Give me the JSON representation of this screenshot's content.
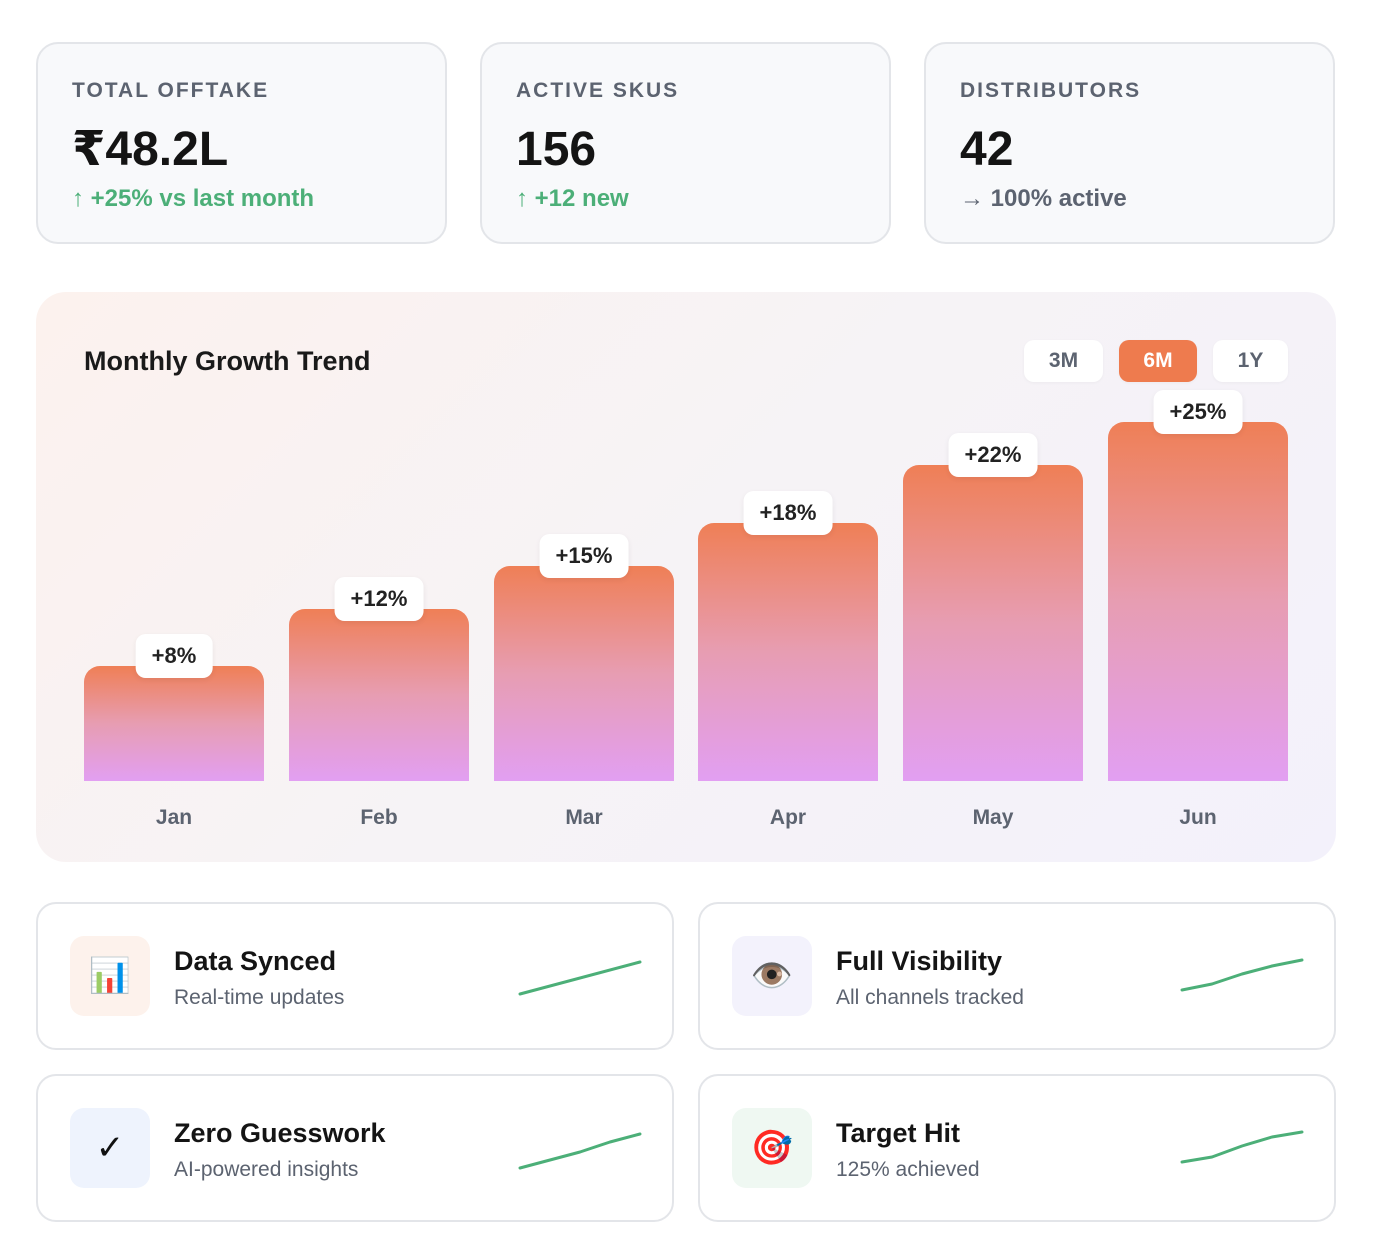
{
  "stats": [
    {
      "label": "TOTAL OFFTAKE",
      "value": "₹48.2L",
      "change": "↑ +25% vs last month",
      "trend": "up"
    },
    {
      "label": "ACTIVE SKUS",
      "value": "156",
      "change": "↑ +12 new",
      "trend": "up"
    },
    {
      "label": "DISTRIBUTORS",
      "value": "42",
      "change": "→ 100% active",
      "trend": "neutral"
    }
  ],
  "chart": {
    "title": "Monthly Growth Trend",
    "ranges": [
      "3M",
      "6M",
      "1Y"
    ],
    "active_range": "6M"
  },
  "chart_data": {
    "type": "bar",
    "categories": [
      "Jan",
      "Feb",
      "Mar",
      "Apr",
      "May",
      "Jun"
    ],
    "values": [
      8,
      12,
      15,
      18,
      22,
      25
    ],
    "data_labels": [
      "+8%",
      "+12%",
      "+15%",
      "+18%",
      "+22%",
      "+25%"
    ],
    "title": "Monthly Growth Trend",
    "grid": false
  },
  "features": [
    {
      "title": "Data Synced",
      "subtitle": "Real-time updates",
      "icon": "bar-chart-icon",
      "glyph": "📊",
      "icon_bg": "#fdf2ec"
    },
    {
      "title": "Full Visibility",
      "subtitle": "All channels tracked",
      "icon": "eye-icon",
      "glyph": "👁️",
      "icon_bg": "#f3f2fc"
    },
    {
      "title": "Zero Guesswork",
      "subtitle": "AI-powered insights",
      "icon": "checkmark-icon",
      "glyph": "✓",
      "icon_bg": "#eef3fd"
    },
    {
      "title": "Target Hit",
      "subtitle": "125% achieved",
      "icon": "target-icon",
      "glyph": "🎯",
      "icon_bg": "#eff8f2"
    }
  ],
  "colors": {
    "accent": "#ee7b4e",
    "positive": "#4caf78",
    "muted": "#5c6370",
    "bar_top": "#ef7f56",
    "bar_bottom": "#e29ff2"
  }
}
